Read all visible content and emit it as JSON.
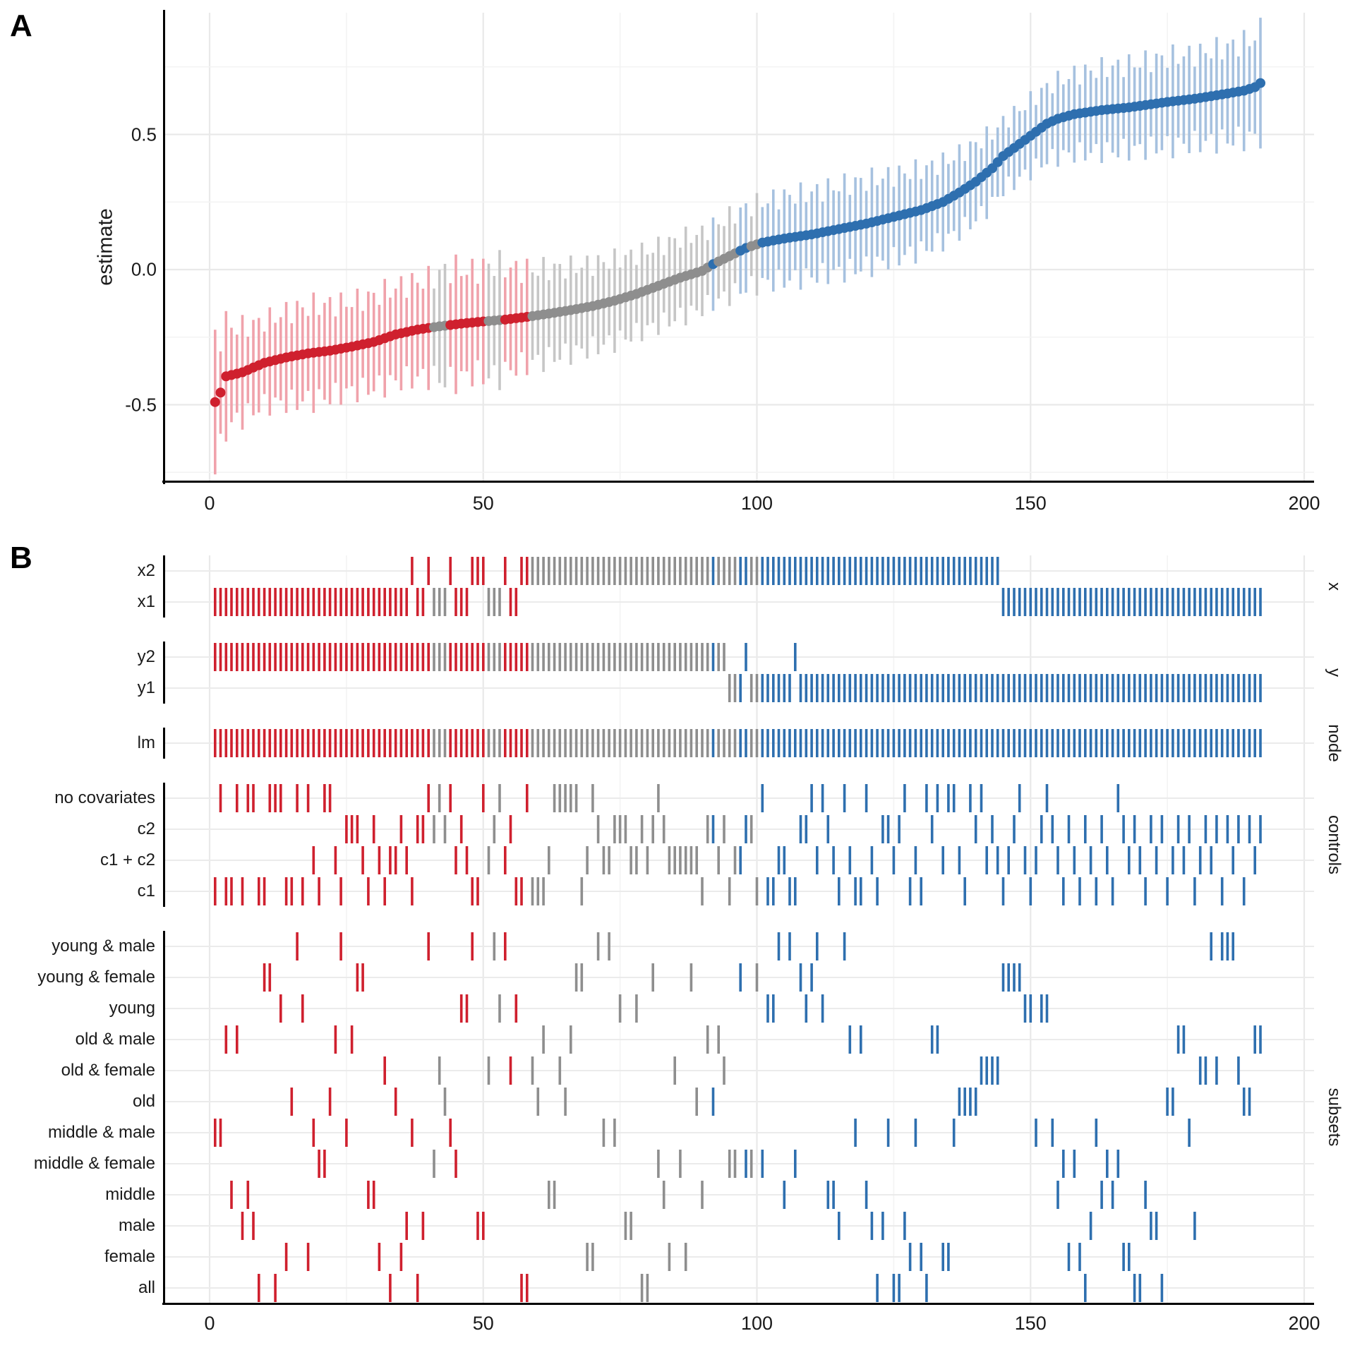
{
  "figure": {
    "panel_a_label": "A",
    "panel_b_label": "B"
  },
  "colors": {
    "negative": "#CF202E",
    "negative_light": "#F0A2AB",
    "null": "#8E8E8E",
    "null_light": "#C6C6C6",
    "positive": "#2E6FAF",
    "positive_light": "#A6C1DF",
    "axis": "#000000",
    "grid": "#E9E9E9",
    "grid_minor": "#F3F3F3",
    "row_line": "#EBEBEB",
    "text": "#1A1A1A"
  },
  "chart_data": [
    {
      "type": "scatter",
      "panel": "A",
      "ylabel": "estimate",
      "n_specs": 192,
      "xlim": [
        -8.1,
        201.8
      ],
      "ylim": [
        -0.78,
        0.95
      ],
      "x_ticks": [
        {
          "label": "0",
          "v": 0
        },
        {
          "label": "50",
          "v": 50
        },
        {
          "label": "100",
          "v": 100
        },
        {
          "label": "150",
          "v": 150
        },
        {
          "label": "200",
          "v": 200
        }
      ],
      "x_minor": [
        25,
        75,
        125,
        175
      ],
      "y_ticks": [
        {
          "label": "0.5",
          "v": 0.5
        },
        {
          "label": "0.0",
          "v": 0.0
        },
        {
          "label": "-0.5",
          "v": -0.5
        }
      ],
      "y_minor": [
        0.75,
        0.25,
        -0.25,
        -0.75
      ],
      "estimate_anchors": [
        [
          1,
          -0.49
        ],
        [
          2,
          -0.455
        ],
        [
          3,
          -0.395
        ],
        [
          6,
          -0.38
        ],
        [
          10,
          -0.345
        ],
        [
          14,
          -0.325
        ],
        [
          18,
          -0.31
        ],
        [
          22,
          -0.3
        ],
        [
          26,
          -0.285
        ],
        [
          30,
          -0.268
        ],
        [
          34,
          -0.24
        ],
        [
          38,
          -0.222
        ],
        [
          42,
          -0.21
        ],
        [
          46,
          -0.2
        ],
        [
          50,
          -0.192
        ],
        [
          54,
          -0.185
        ],
        [
          58,
          -0.175
        ],
        [
          62,
          -0.163
        ],
        [
          66,
          -0.15
        ],
        [
          70,
          -0.135
        ],
        [
          74,
          -0.115
        ],
        [
          78,
          -0.09
        ],
        [
          82,
          -0.06
        ],
        [
          86,
          -0.03
        ],
        [
          90,
          -0.005
        ],
        [
          92,
          0.02
        ],
        [
          95,
          0.05
        ],
        [
          98,
          0.08
        ],
        [
          101,
          0.1
        ],
        [
          105,
          0.115
        ],
        [
          110,
          0.13
        ],
        [
          115,
          0.15
        ],
        [
          120,
          0.17
        ],
        [
          125,
          0.195
        ],
        [
          130,
          0.22
        ],
        [
          134,
          0.25
        ],
        [
          137,
          0.285
        ],
        [
          140,
          0.325
        ],
        [
          143,
          0.375
        ],
        [
          145,
          0.42
        ],
        [
          147,
          0.45
        ],
        [
          149,
          0.48
        ],
        [
          151,
          0.51
        ],
        [
          153,
          0.54
        ],
        [
          155,
          0.558
        ],
        [
          158,
          0.575
        ],
        [
          163,
          0.59
        ],
        [
          168,
          0.6
        ],
        [
          175,
          0.62
        ],
        [
          180,
          0.632
        ],
        [
          185,
          0.648
        ],
        [
          189,
          0.662
        ],
        [
          191,
          0.675
        ],
        [
          192,
          0.69
        ]
      ],
      "ci_halfwidth_anchors": [
        [
          1,
          0.225
        ],
        [
          5,
          0.17
        ],
        [
          10,
          0.155
        ],
        [
          15,
          0.17
        ],
        [
          20,
          0.175
        ],
        [
          25,
          0.165
        ],
        [
          30,
          0.17
        ],
        [
          35,
          0.175
        ],
        [
          40,
          0.18
        ],
        [
          44,
          0.21
        ],
        [
          48,
          0.19
        ],
        [
          52,
          0.21
        ],
        [
          56,
          0.18
        ],
        [
          60,
          0.17
        ],
        [
          65,
          0.16
        ],
        [
          70,
          0.155
        ],
        [
          75,
          0.15
        ],
        [
          80,
          0.145
        ],
        [
          85,
          0.145
        ],
        [
          90,
          0.14
        ],
        [
          95,
          0.145
        ],
        [
          100,
          0.15
        ],
        [
          105,
          0.155
        ],
        [
          110,
          0.155
        ],
        [
          115,
          0.16
        ],
        [
          120,
          0.16
        ],
        [
          125,
          0.155
        ],
        [
          130,
          0.15
        ],
        [
          135,
          0.145
        ],
        [
          140,
          0.14
        ],
        [
          145,
          0.125
        ],
        [
          150,
          0.13
        ],
        [
          155,
          0.14
        ],
        [
          160,
          0.15
        ],
        [
          165,
          0.155
        ],
        [
          170,
          0.16
        ],
        [
          175,
          0.165
        ],
        [
          180,
          0.165
        ],
        [
          185,
          0.17
        ],
        [
          190,
          0.18
        ],
        [
          192,
          0.195
        ]
      ],
      "ci_jitter": 0.28,
      "groups": "rrrrrrrrrrrrrrrrrrrrrrrrrrrrrrrrrrrrrrrrgggrrrrrrrgggrrrrrgggggggggggggggggggggggggggggggggbggggbbggbbbbbbbbbbbbbbbbbbbbbbbbbbbbbbbbbbbbbbbbbbbbbbbbbbbbbbbbbbbbbbbbbbbbbbbbbbbbbbbbbbbbbbbbbbbb"
    },
    {
      "type": "spec-grid",
      "panel": "B",
      "n_specs": 192,
      "x_ticks": [
        {
          "label": "0",
          "v": 0
        },
        {
          "label": "50",
          "v": 50
        },
        {
          "label": "100",
          "v": 100
        },
        {
          "label": "150",
          "v": 150
        },
        {
          "label": "200",
          "v": 200
        }
      ],
      "x_minor": [
        25,
        75,
        125,
        175
      ],
      "facets": [
        {
          "label": "x",
          "key": "x_assign",
          "rows": [
            {
              "label": "x2",
              "code": "2"
            },
            {
              "label": "x1",
              "code": "1"
            }
          ]
        },
        {
          "label": "y",
          "key": "y_assign",
          "rows": [
            {
              "label": "y2",
              "code": "2"
            },
            {
              "label": "y1",
              "code": "1"
            }
          ]
        },
        {
          "label": "node",
          "key": "node_assign",
          "rows": [
            {
              "label": "lm",
              "code": "1"
            }
          ]
        },
        {
          "label": "controls",
          "key": "controls_assign",
          "rows": [
            {
              "label": "no covariates",
              "code": "3"
            },
            {
              "label": "c2",
              "code": "1"
            },
            {
              "label": "c1 + c2",
              "code": "2"
            },
            {
              "label": "c1",
              "code": "0"
            }
          ]
        },
        {
          "label": "subsets",
          "key": "subsets_assign",
          "rows": [
            {
              "label": "young & male",
              "code": "b"
            },
            {
              "label": "young & female",
              "code": "a"
            },
            {
              "label": "young",
              "code": "9"
            },
            {
              "label": "old & male",
              "code": "8"
            },
            {
              "label": "old & female",
              "code": "7"
            },
            {
              "label": "old",
              "code": "6"
            },
            {
              "label": "middle & male",
              "code": "5"
            },
            {
              "label": "middle & female",
              "code": "4"
            },
            {
              "label": "middle",
              "code": "3"
            },
            {
              "label": "male",
              "code": "2"
            },
            {
              "label": "female",
              "code": "1"
            },
            {
              "label": "all",
              "code": "0"
            }
          ]
        }
      ],
      "x_assign": "111111111111111111111111111111111111211211121112221112112222222222222222222222222222222222222222222222222222222222222222222222222222222222222222111111111111111111111111111111111111111111111111",
      "y_assign": "222222222222222222222222222222222222222222222222222222222222222222222222222222222222222222222211121111111121111111111111111111111111111111111111111111111111111111111111111111111111111111111111",
      "node_assign": "111111111111111111111111111111111111111111111111111111111111111111111111111111111111111111111111111111111111111111111111111111111111111111111111111111111111111111111111111111111111111111111111",
      "controls_assign": "030030330033300303203320111201202212011313132120032132100300023333302312211122121312222220112102211030022001132312032003201121302031323320313212021320213120120120120312120121021210212101210121",
      "subsets_assign": "558382320aa0916b9154468b58aa33170612502b4765499b227b9b790076833768aa11b5b5922900a431741a63868744a44a499b3b4a9ab9332b85832025002151088115666677 77aaaa995995341410253434110032206688527 7b7bbb76688"
    }
  ]
}
